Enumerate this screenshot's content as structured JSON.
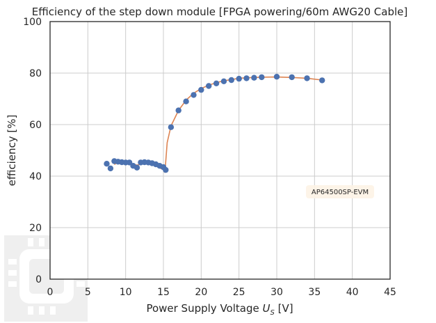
{
  "chart_data": {
    "type": "scatter",
    "title": "Efficiency of the step down module [FPGA powering/60m AWG20 Cable]",
    "xlabel": "Power Supply Voltage U_S [V]",
    "xlabel_parts": {
      "prefix": "Power Supply Voltage ",
      "var": "U",
      "sub": "S",
      "suffix": " [V]"
    },
    "ylabel": "efficiency [%]",
    "xlim": [
      0,
      45
    ],
    "ylim": [
      0,
      100
    ],
    "xticks": [
      "0",
      "5",
      "10",
      "15",
      "20",
      "25",
      "30",
      "35",
      "40",
      "45"
    ],
    "yticks": [
      "0",
      "20",
      "40",
      "60",
      "80",
      "100"
    ],
    "grid": true,
    "annotation": "AP64500SP-EVM",
    "colors": {
      "points": "#4c72b0",
      "line": "#dd8452",
      "grid": "#cccccc",
      "frame": "#262626"
    },
    "points": {
      "x": [
        7.5,
        8.0,
        8.5,
        9.0,
        9.5,
        10.0,
        10.5,
        11.0,
        11.5,
        12.0,
        12.5,
        13.0,
        13.5,
        14.0,
        14.5,
        15.0,
        15.3,
        16.0,
        17.0,
        18.0,
        19.0,
        20.0,
        21.0,
        22.0,
        23.0,
        24.0,
        25.0,
        26.0,
        27.0,
        28.0,
        30.0,
        32.0,
        34.0,
        36.0
      ],
      "y": [
        44.8,
        43.0,
        45.8,
        45.6,
        45.4,
        45.3,
        45.3,
        44.0,
        43.3,
        45.3,
        45.4,
        45.3,
        45.0,
        44.6,
        44.0,
        43.5,
        42.4,
        59.0,
        65.5,
        69.0,
        71.5,
        73.5,
        75.0,
        76.0,
        76.8,
        77.3,
        77.8,
        78.0,
        78.2,
        78.4,
        78.6,
        78.4,
        78.0,
        77.2
      ]
    },
    "fit_line": {
      "x": [
        8.5,
        9.0,
        9.5,
        10.0,
        10.5,
        11.0,
        11.5,
        12.0,
        12.5,
        13.0,
        13.5,
        14.0,
        14.5,
        15.0,
        15.2,
        15.5,
        16.0,
        17.0,
        18.0,
        19.0,
        20.0,
        21.0,
        22.0,
        23.0,
        24.0,
        25.0,
        26.0,
        27.0,
        28.0,
        30.0,
        32.0,
        34.0,
        36.0
      ],
      "y": [
        44.5,
        45.5,
        45.2,
        45.0,
        44.8,
        44.6,
        44.3,
        44.6,
        45.0,
        45.0,
        44.6,
        44.0,
        43.2,
        42.5,
        41.5,
        53.0,
        59.5,
        65.5,
        69.5,
        72.2,
        74.0,
        75.3,
        76.3,
        77.0,
        77.5,
        78.0,
        78.2,
        78.3,
        78.4,
        78.5,
        78.3,
        78.0,
        77.3
      ]
    }
  }
}
